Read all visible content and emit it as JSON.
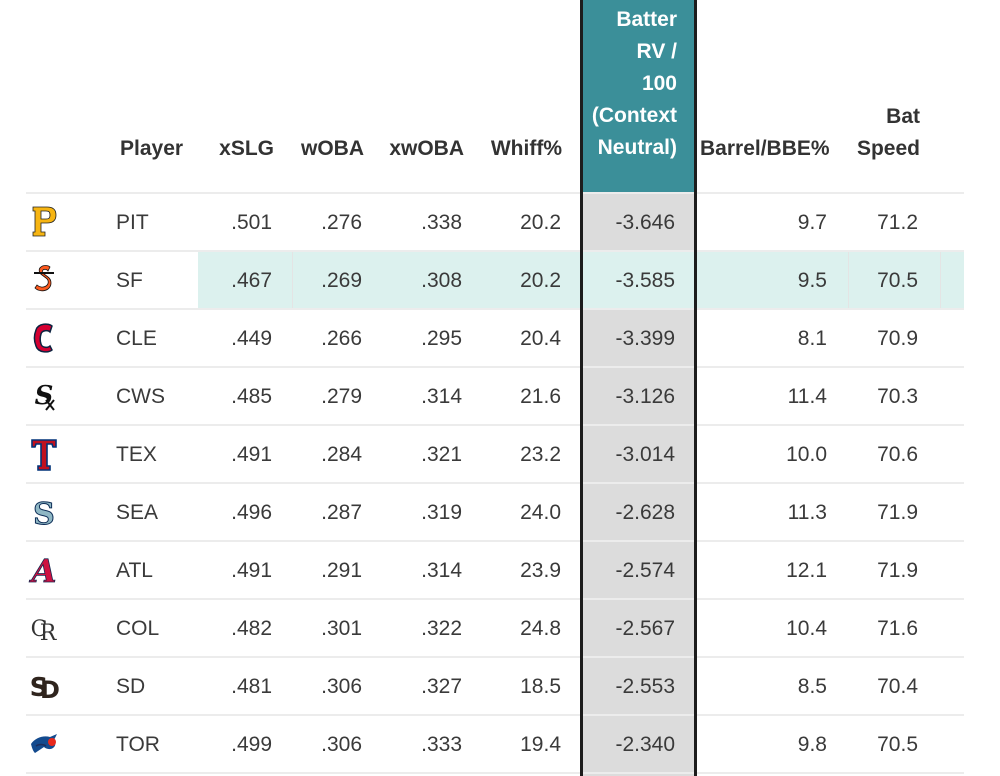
{
  "headers": {
    "player": "Player",
    "xslg": "xSLG",
    "woba": "wOBA",
    "xwoba": "xwOBA",
    "whiff": "Whiff%",
    "batter_rv": "Batter\nRV /\n100\n(Context\nNeutral)",
    "barrel": "Barrel/BBE%",
    "bat_speed": "Bat\nSpeed"
  },
  "colors": {
    "header_highlight": "#3b8f99",
    "column_highlight": "#dcdcdc",
    "row_highlight": "#dcf1ee"
  },
  "rows": [
    {
      "logo_icon": "pirates-logo-icon",
      "team": "PIT",
      "xslg": ".501",
      "woba": ".276",
      "xwoba": ".338",
      "whiff": "20.2",
      "rv": "-3.646",
      "barrel": "9.7",
      "bat_speed": "71.2"
    },
    {
      "logo_icon": "giants-logo-icon",
      "team": "SF",
      "xslg": ".467",
      "woba": ".269",
      "xwoba": ".308",
      "whiff": "20.2",
      "rv": "-3.585",
      "barrel": "9.5",
      "bat_speed": "70.5"
    },
    {
      "logo_icon": "guardians-logo-icon",
      "team": "CLE",
      "xslg": ".449",
      "woba": ".266",
      "xwoba": ".295",
      "whiff": "20.4",
      "rv": "-3.399",
      "barrel": "8.1",
      "bat_speed": "70.9"
    },
    {
      "logo_icon": "white-sox-logo-icon",
      "team": "CWS",
      "xslg": ".485",
      "woba": ".279",
      "xwoba": ".314",
      "whiff": "21.6",
      "rv": "-3.126",
      "barrel": "11.4",
      "bat_speed": "70.3"
    },
    {
      "logo_icon": "rangers-logo-icon",
      "team": "TEX",
      "xslg": ".491",
      "woba": ".284",
      "xwoba": ".321",
      "whiff": "23.2",
      "rv": "-3.014",
      "barrel": "10.0",
      "bat_speed": "70.6"
    },
    {
      "logo_icon": "mariners-logo-icon",
      "team": "SEA",
      "xslg": ".496",
      "woba": ".287",
      "xwoba": ".319",
      "whiff": "24.0",
      "rv": "-2.628",
      "barrel": "11.3",
      "bat_speed": "71.9"
    },
    {
      "logo_icon": "braves-logo-icon",
      "team": "ATL",
      "xslg": ".491",
      "woba": ".291",
      "xwoba": ".314",
      "whiff": "23.9",
      "rv": "-2.574",
      "barrel": "12.1",
      "bat_speed": "71.9"
    },
    {
      "logo_icon": "rockies-logo-icon",
      "team": "COL",
      "xslg": ".482",
      "woba": ".301",
      "xwoba": ".322",
      "whiff": "24.8",
      "rv": "-2.567",
      "barrel": "10.4",
      "bat_speed": "71.6"
    },
    {
      "logo_icon": "padres-logo-icon",
      "team": "SD",
      "xslg": ".481",
      "woba": ".306",
      "xwoba": ".327",
      "whiff": "18.5",
      "rv": "-2.553",
      "barrel": "8.5",
      "bat_speed": "70.4"
    },
    {
      "logo_icon": "blue-jays-logo-icon",
      "team": "TOR",
      "xslg": ".499",
      "woba": ".306",
      "xwoba": ".333",
      "whiff": "19.4",
      "rv": "-2.340",
      "barrel": "9.8",
      "bat_speed": "70.5"
    }
  ]
}
